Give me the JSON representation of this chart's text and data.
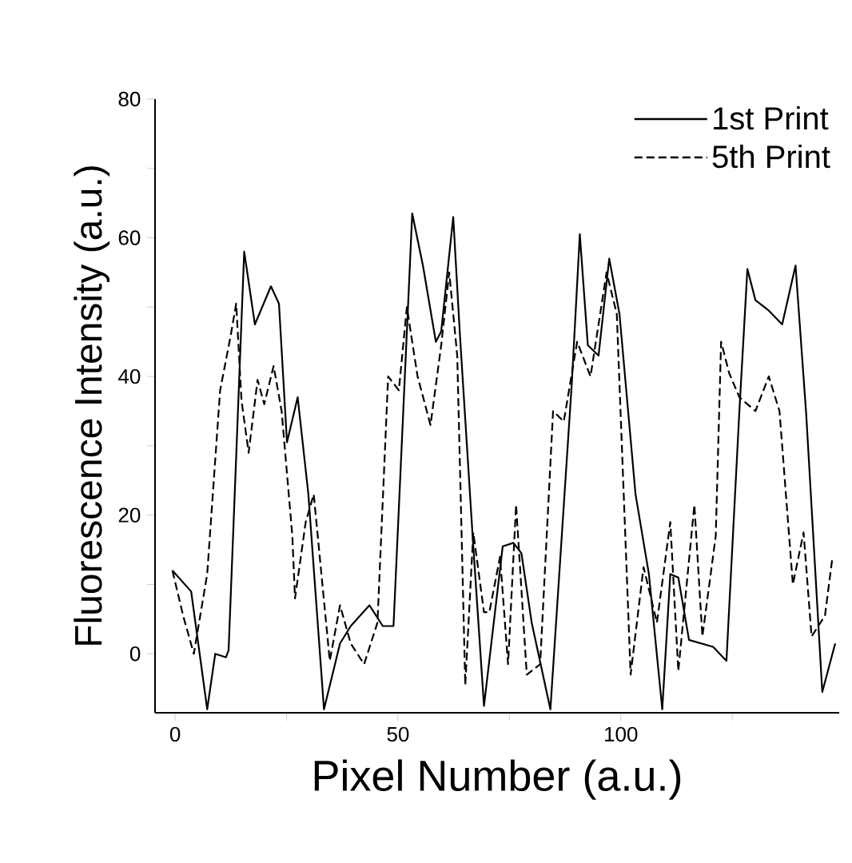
{
  "chart_data": {
    "type": "line",
    "xlabel": "Pixel Number (a.u.)",
    "ylabel": "Fluorescence Intensity (a.u.)",
    "xlim": [
      -4.5,
      149
    ],
    "ylim": [
      -8.5,
      80
    ],
    "xticks": [
      0,
      {
        "value": 25,
        "label": null
      },
      50,
      {
        "value": 75,
        "label": null
      },
      100,
      {
        "value": 125,
        "label": null
      }
    ],
    "yticks": [
      0,
      {
        "value": 10,
        "label": null
      },
      20,
      {
        "value": 30,
        "label": null
      },
      40,
      {
        "value": 50,
        "label": null
      },
      60,
      {
        "value": 70,
        "label": null
      },
      80
    ],
    "legend": "top right",
    "grid": false,
    "marker": "none",
    "series": [
      {
        "name": "1st Print",
        "color": "#000000",
        "line_style": "solid",
        "x": [
          -0.6,
          3.6,
          7.2,
          9,
          11.4,
          12,
          15.5,
          17.9,
          21.5,
          23.3,
          25.1,
          27.5,
          29.9,
          33.4,
          37,
          39.4,
          43.6,
          46.6,
          49,
          53.2,
          55.6,
          58.5,
          59.7,
          62.4,
          63.9,
          66.9,
          69.3,
          73.5,
          75.9,
          77.7,
          80,
          84.2,
          89,
          90.8,
          92.6,
          95,
          97.4,
          99.7,
          103.3,
          106.3,
          109.3,
          111.1,
          112.9,
          115.3,
          120.7,
          123.7,
          126.6,
          128.4,
          130.2,
          133.2,
          136.2,
          139.2,
          141.6,
          145.2,
          148.1
        ],
        "values": [
          12,
          9,
          -8,
          0,
          -0.5,
          0.5,
          58,
          47.5,
          53,
          50.5,
          30.5,
          37,
          23,
          -8,
          1.5,
          4,
          7,
          4,
          4,
          63.5,
          56,
          45,
          46.5,
          63,
          46,
          15.5,
          -7.5,
          15.5,
          16,
          14.5,
          4.5,
          -8,
          39,
          60.5,
          44.5,
          43,
          57,
          49,
          23,
          11.5,
          -8,
          11.5,
          11,
          2,
          1,
          -1,
          35,
          55.5,
          51,
          49.5,
          47.5,
          56,
          34.5,
          -5.5,
          1.5
        ]
      },
      {
        "name": "5th Print",
        "color": "#000000",
        "line_style": "dashed",
        "x": [
          -0.6,
          1.8,
          4.2,
          7.2,
          10.1,
          12.5,
          13.7,
          14.9,
          16.5,
          18.5,
          20,
          22.1,
          23.9,
          26.3,
          26.9,
          29.3,
          31.1,
          34.7,
          37,
          39.4,
          42.4,
          45.4,
          47.8,
          50.2,
          52,
          54.4,
          57.3,
          59.7,
          61.5,
          63.3,
          65.1,
          66.9,
          69.3,
          70.5,
          72.9,
          74.7,
          76.5,
          78.9,
          81.9,
          84.8,
          87.2,
          90.2,
          93.2,
          96.8,
          99.1,
          102.2,
          105.1,
          108.1,
          111.1,
          112.9,
          116.5,
          118.3,
          121.3,
          122.5,
          124.3,
          126.6,
          130.2,
          133.2,
          135.6,
          138.6,
          141,
          142.8,
          145.8,
          147.5
        ],
        "values": [
          12,
          5.5,
          0,
          11.5,
          38,
          46,
          50.5,
          36.5,
          29,
          39.5,
          36,
          41.5,
          35,
          17,
          8,
          19,
          23,
          -1,
          7,
          1.5,
          -1.5,
          4.5,
          40,
          38,
          50,
          40,
          33,
          44.5,
          55,
          43,
          -4.5,
          17.5,
          6,
          6,
          14,
          -1.5,
          21.5,
          -3,
          -1.5,
          35,
          33.5,
          45,
          40,
          55,
          49,
          -3,
          12.5,
          4.5,
          19,
          -2.5,
          21.5,
          2.5,
          17,
          45,
          40.5,
          37,
          35,
          40,
          35,
          10,
          17.5,
          2.5,
          5.5,
          14
        ]
      }
    ]
  }
}
